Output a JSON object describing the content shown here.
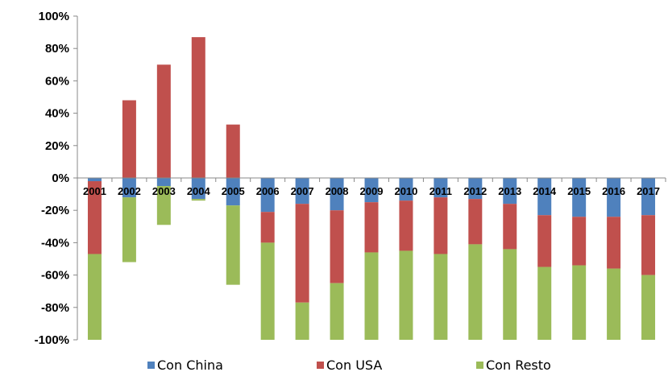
{
  "chart_data": {
    "type": "bar",
    "stacked": true,
    "categories": [
      "2001",
      "2002",
      "2003",
      "2004",
      "2005",
      "2006",
      "2007",
      "2008",
      "2009",
      "2010",
      "2011",
      "2012",
      "2013",
      "2014",
      "2015",
      "2016",
      "2017"
    ],
    "series": [
      {
        "name": "Con China",
        "color": "#4f81bd",
        "values": [
          -2,
          -12,
          -5,
          -13,
          -17,
          -21,
          -16,
          -20,
          -15,
          -14,
          -12,
          -13,
          -16,
          -23,
          -24,
          -24,
          -23
        ]
      },
      {
        "name": "Con USA",
        "color": "#c0504d",
        "values": [
          -45,
          48,
          70,
          87,
          33,
          -19,
          -61,
          -45,
          -31,
          -31,
          -35,
          -28,
          -28,
          -32,
          -30,
          -32,
          -37
        ]
      },
      {
        "name": "Con Resto",
        "color": "#9bbb59",
        "values": [
          -53,
          -40,
          -24,
          -1,
          -49,
          -60,
          -23,
          -35,
          -54,
          -55,
          -53,
          -59,
          -56,
          -45,
          -46,
          -44,
          -40
        ]
      }
    ],
    "ylim": [
      -100,
      100
    ],
    "yticks": [
      100,
      80,
      60,
      40,
      20,
      0,
      -20,
      -40,
      -60,
      -80,
      -100
    ],
    "ytick_labels": [
      "100%",
      "80%",
      "60%",
      "40%",
      "20%",
      "0%",
      "-20%",
      "-40%",
      "-60%",
      "-80%",
      "-100%"
    ],
    "legend_position": "bottom",
    "grid": false,
    "xlabel": "",
    "ylabel": "",
    "title": ""
  }
}
